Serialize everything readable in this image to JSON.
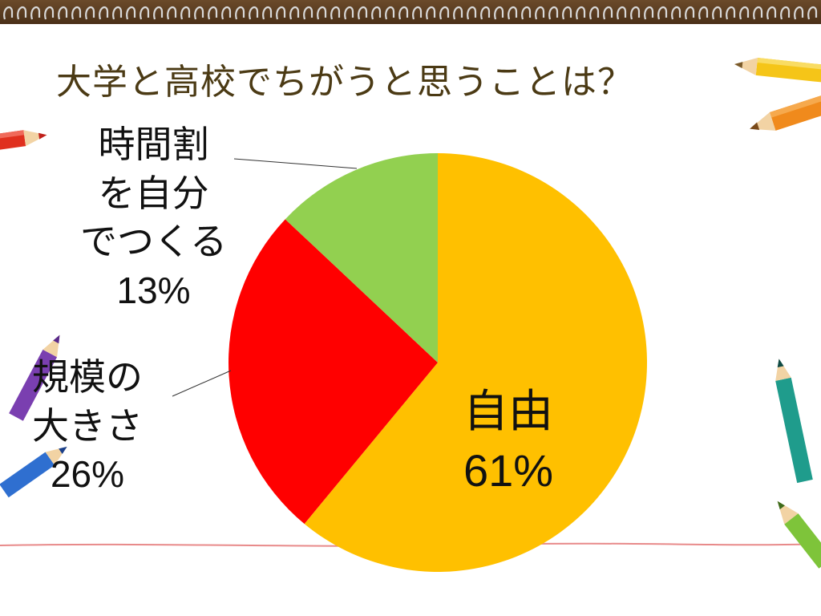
{
  "slide": {
    "title": "大学と高校でちがうと思うことは？"
  },
  "colors": {
    "jiyuu": "#FFC000",
    "kibo": "#FF0000",
    "jikanwari": "#92D050",
    "title": "#4b3a14",
    "ruled_line": "#e88a8a"
  },
  "labels": {
    "jikanwari": {
      "line1": "時間割",
      "line2": "を自分",
      "line3": "でつくる",
      "pct": "13%"
    },
    "kibo": {
      "line1": "規模の",
      "line2": "大きさ",
      "pct": "26%"
    },
    "jiyuu": {
      "line1": "自由",
      "pct": "61%"
    }
  },
  "chart_data": {
    "type": "pie",
    "title": "大学と高校でちがうと思うことは？",
    "slices": [
      {
        "label": "自由",
        "value": 61,
        "color": "#FFC000"
      },
      {
        "label": "規模の大きさ",
        "value": 26,
        "color": "#FF0000"
      },
      {
        "label": "時間割を自分でつくる",
        "value": 13,
        "color": "#92D050"
      }
    ],
    "start_angle_deg": 0,
    "direction": "clockwise",
    "legend": "none"
  }
}
